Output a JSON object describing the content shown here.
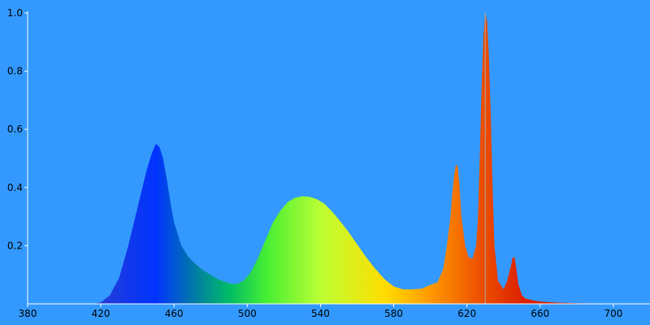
{
  "chart_data": {
    "type": "area",
    "title": "",
    "xlabel": "",
    "ylabel": "",
    "xlim": [
      380,
      720
    ],
    "ylim": [
      0,
      1.0
    ],
    "grid": false,
    "legend": "none",
    "background_color": "#3399ff",
    "axis_color": "#ffffff",
    "x_ticks": [
      380,
      420,
      460,
      500,
      540,
      580,
      620,
      660,
      700
    ],
    "y_ticks": [
      0.2,
      0.4,
      0.6,
      0.8,
      1.0
    ],
    "x_tick_labels": [
      "380",
      "420",
      "460",
      "500",
      "540",
      "580",
      "620",
      "660",
      "700"
    ],
    "y_tick_labels": [
      "0.2",
      "0.4",
      "0.6",
      "0.8",
      "1.0"
    ],
    "color_stops": [
      {
        "wavelength": 415,
        "color": "#2a3fd0"
      },
      {
        "wavelength": 450,
        "color": "#0033ff"
      },
      {
        "wavelength": 470,
        "color": "#0077aa"
      },
      {
        "wavelength": 490,
        "color": "#00bb66"
      },
      {
        "wavelength": 510,
        "color": "#44ee33"
      },
      {
        "wavelength": 540,
        "color": "#bbff33"
      },
      {
        "wavelength": 575,
        "color": "#ffdd00"
      },
      {
        "wavelength": 600,
        "color": "#ff9900"
      },
      {
        "wavelength": 625,
        "color": "#ee5500"
      },
      {
        "wavelength": 650,
        "color": "#dd2200"
      },
      {
        "wavelength": 700,
        "color": "#cc1100"
      }
    ],
    "series": [
      {
        "x": [
          415,
          420,
          425,
          430,
          435,
          440,
          445,
          448,
          450,
          452,
          454,
          456,
          458,
          460,
          464,
          468,
          472,
          476,
          480,
          484,
          488,
          492,
          495,
          498,
          502,
          506,
          510,
          514,
          518,
          522,
          526,
          530,
          534,
          538,
          542,
          546,
          550,
          555,
          560,
          565,
          570,
          575,
          580,
          585,
          590,
          595,
          600,
          604,
          607,
          609,
          611,
          612,
          613,
          614,
          615,
          616,
          617,
          619,
          621,
          623,
          625,
          626,
          627,
          628,
          629,
          630,
          631,
          632,
          633,
          634,
          635,
          637,
          640,
          642,
          644,
          645,
          646,
          647,
          648,
          650,
          652,
          656,
          660,
          665,
          670,
          680,
          690,
          700,
          715
        ],
        "y": [
          0.0,
          0.005,
          0.03,
          0.09,
          0.2,
          0.33,
          0.46,
          0.52,
          0.55,
          0.54,
          0.5,
          0.43,
          0.35,
          0.28,
          0.2,
          0.16,
          0.135,
          0.115,
          0.1,
          0.085,
          0.075,
          0.068,
          0.07,
          0.08,
          0.11,
          0.16,
          0.22,
          0.28,
          0.32,
          0.35,
          0.365,
          0.37,
          0.368,
          0.36,
          0.345,
          0.32,
          0.29,
          0.25,
          0.205,
          0.16,
          0.12,
          0.085,
          0.06,
          0.05,
          0.05,
          0.052,
          0.065,
          0.075,
          0.12,
          0.2,
          0.3,
          0.38,
          0.44,
          0.48,
          0.47,
          0.4,
          0.3,
          0.2,
          0.16,
          0.155,
          0.2,
          0.3,
          0.5,
          0.75,
          0.92,
          1.0,
          0.97,
          0.85,
          0.65,
          0.4,
          0.2,
          0.08,
          0.05,
          0.08,
          0.13,
          0.16,
          0.16,
          0.12,
          0.07,
          0.03,
          0.018,
          0.012,
          0.008,
          0.006,
          0.004,
          0.002,
          0.001,
          0.0,
          0.0
        ]
      }
    ],
    "annotations": [
      {
        "type": "vline",
        "x": 630
      }
    ]
  }
}
